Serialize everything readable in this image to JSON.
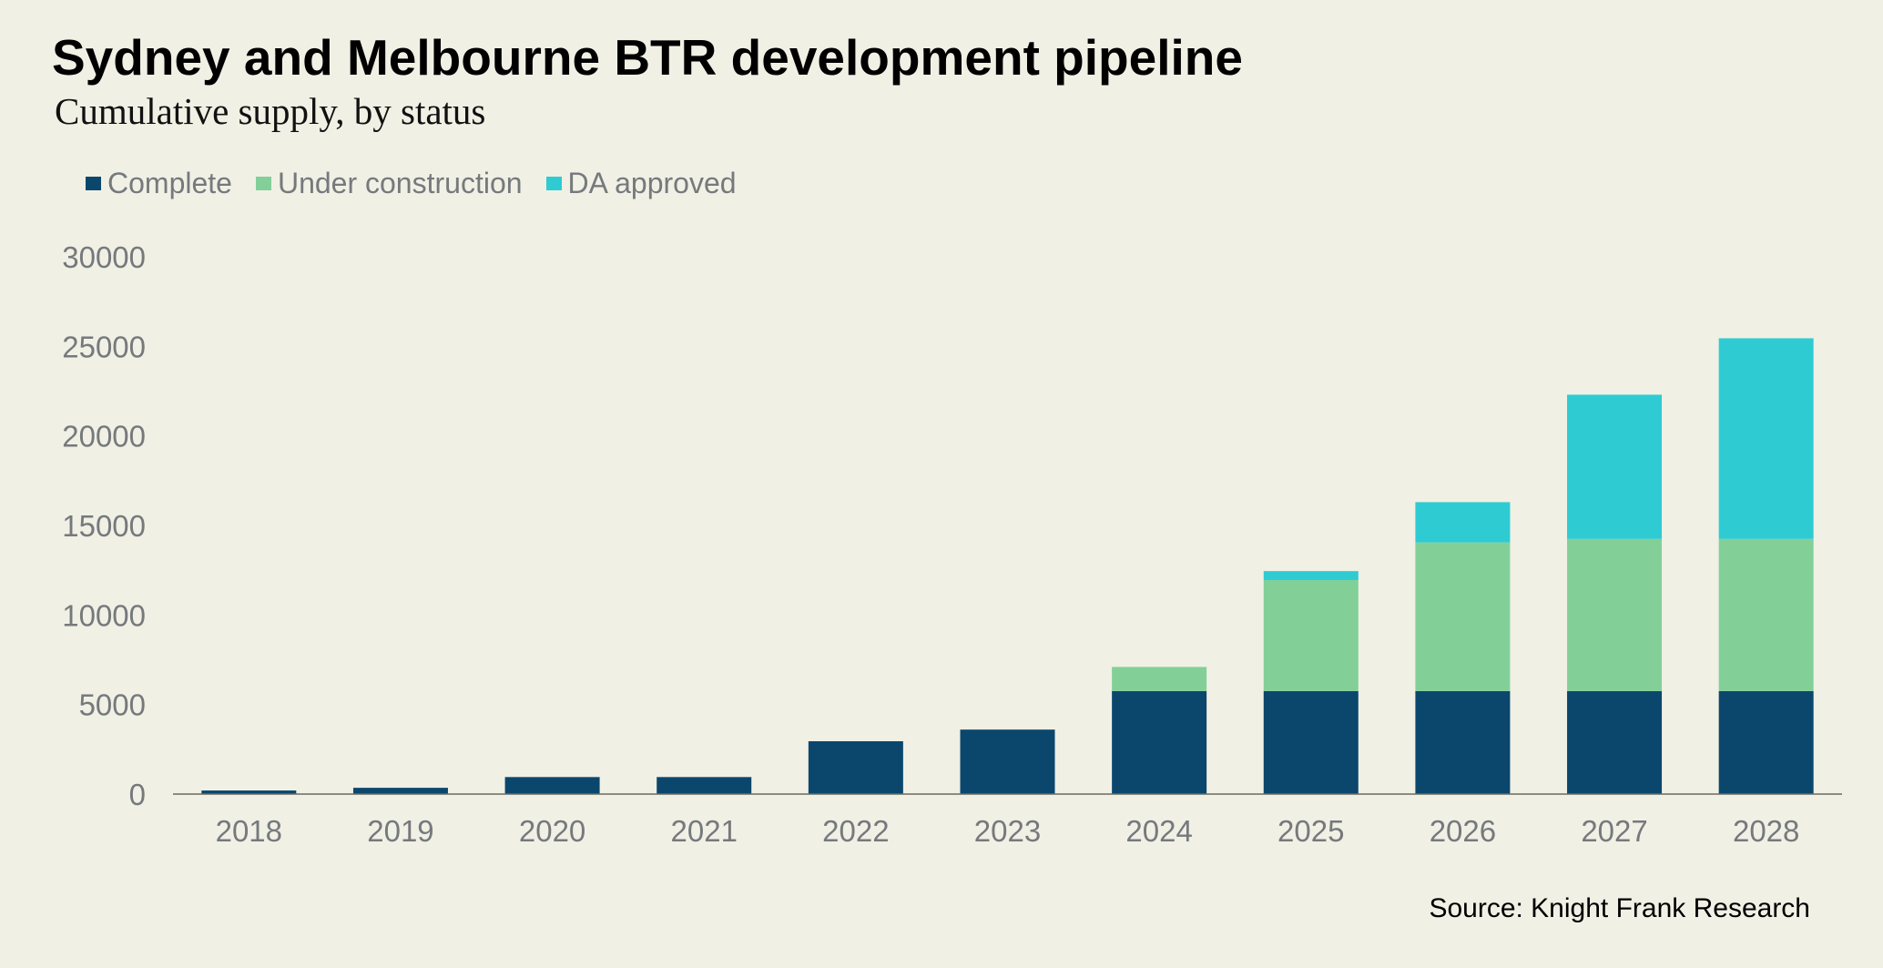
{
  "header": {
    "title": "Sydney and Melbourne BTR development pipeline",
    "subtitle": "Cumulative supply, by status"
  },
  "footer": {
    "source": "Source: Knight Frank Research"
  },
  "chart_data": {
    "type": "bar",
    "stacked": true,
    "title": "Sydney and Melbourne BTR development pipeline",
    "subtitle": "Cumulative supply, by status",
    "xlabel": "",
    "ylabel": "",
    "categories": [
      "2018",
      "2019",
      "2020",
      "2021",
      "2022",
      "2023",
      "2024",
      "2025",
      "2026",
      "2027",
      "2028"
    ],
    "series": [
      {
        "name": "Complete",
        "color": "#0b476d",
        "values": [
          200,
          350,
          950,
          950,
          2950,
          3600,
          5750,
          5750,
          5750,
          5750,
          5750
        ]
      },
      {
        "name": "Under construction",
        "color": "#82d098",
        "values": [
          0,
          0,
          0,
          0,
          0,
          0,
          1350,
          6200,
          8300,
          8500,
          8500
        ]
      },
      {
        "name": "DA approved",
        "color": "#2ecbd3",
        "values": [
          0,
          0,
          0,
          0,
          0,
          0,
          0,
          500,
          2250,
          8050,
          11200
        ]
      }
    ],
    "ylim": [
      0,
      30000
    ],
    "yticks": [
      "0",
      "5000",
      "10000",
      "15000",
      "20000",
      "25000",
      "30000"
    ],
    "grid": false,
    "legend_position": "top-left"
  }
}
